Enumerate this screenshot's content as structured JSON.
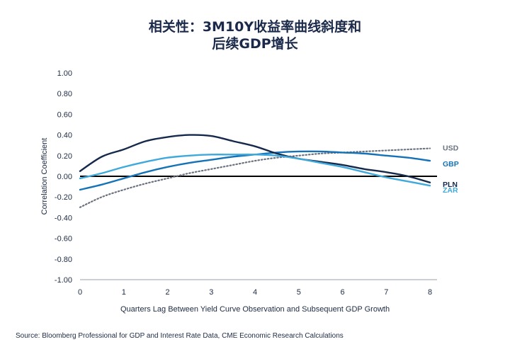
{
  "chart_data": {
    "type": "line",
    "title_lines": [
      "相关性：3M10Y收益率曲线斜度和",
      "后续GDP增长"
    ],
    "xlabel": "Quarters Lag Between Yield Curve Observation and Subsequent GDP Growth",
    "ylabel": "Correlation Coefficient",
    "xlim": [
      0,
      8
    ],
    "ylim": [
      -1.0,
      1.0
    ],
    "x_ticks": [
      0,
      1,
      2,
      3,
      4,
      5,
      6,
      7,
      8
    ],
    "y_ticks": [
      1.0,
      0.8,
      0.6,
      0.4,
      0.2,
      0.0,
      -0.2,
      -0.4,
      -0.6,
      -0.8,
      -1.0
    ],
    "y_tick_labels": [
      "1.00",
      "0.80",
      "0.60",
      "0.40",
      "0.20",
      "0.00",
      "-0.20",
      "-0.40",
      "-0.60",
      "-0.80",
      "-1.00"
    ],
    "zero_line": true,
    "legend": "right-end-labels",
    "series": [
      {
        "name": "USD",
        "color": "#6b7280",
        "dashed": true,
        "x": [
          0,
          0.5,
          1,
          1.5,
          2,
          2.5,
          3,
          3.5,
          4,
          4.5,
          5,
          5.5,
          6,
          6.5,
          7,
          7.5,
          8
        ],
        "y": [
          -0.3,
          -0.2,
          -0.13,
          -0.07,
          -0.02,
          0.03,
          0.07,
          0.11,
          0.15,
          0.18,
          0.2,
          0.22,
          0.23,
          0.24,
          0.25,
          0.26,
          0.27
        ]
      },
      {
        "name": "GBP",
        "color": "#1572b6",
        "dashed": false,
        "x": [
          0,
          0.5,
          1,
          1.5,
          2,
          2.5,
          3,
          3.5,
          4,
          4.5,
          5,
          5.5,
          6,
          6.5,
          7,
          7.5,
          8
        ],
        "y": [
          -0.13,
          -0.08,
          -0.02,
          0.04,
          0.09,
          0.13,
          0.16,
          0.19,
          0.21,
          0.23,
          0.24,
          0.24,
          0.23,
          0.22,
          0.2,
          0.18,
          0.15
        ]
      },
      {
        "name": "PLN",
        "color": "#15294b",
        "dashed": false,
        "x": [
          0,
          0.5,
          1,
          1.5,
          2,
          2.5,
          3,
          3.5,
          4,
          4.5,
          5,
          5.5,
          6,
          6.5,
          7,
          7.5,
          8
        ],
        "y": [
          0.05,
          0.19,
          0.26,
          0.34,
          0.38,
          0.4,
          0.39,
          0.34,
          0.29,
          0.22,
          0.17,
          0.14,
          0.11,
          0.07,
          0.04,
          0.0,
          -0.06
        ]
      },
      {
        "name": "ZAR",
        "color": "#3fa9db",
        "dashed": false,
        "x": [
          0,
          0.5,
          1,
          1.5,
          2,
          2.5,
          3,
          3.5,
          4,
          4.5,
          5,
          5.5,
          6,
          6.5,
          7,
          7.5,
          8
        ],
        "y": [
          -0.02,
          0.03,
          0.09,
          0.14,
          0.18,
          0.2,
          0.21,
          0.21,
          0.21,
          0.2,
          0.17,
          0.13,
          0.09,
          0.04,
          -0.01,
          -0.05,
          -0.09
        ]
      }
    ]
  },
  "source": "Source: Bloomberg Professional for GDP and Interest Rate Data, CME Economic Research Calculations"
}
